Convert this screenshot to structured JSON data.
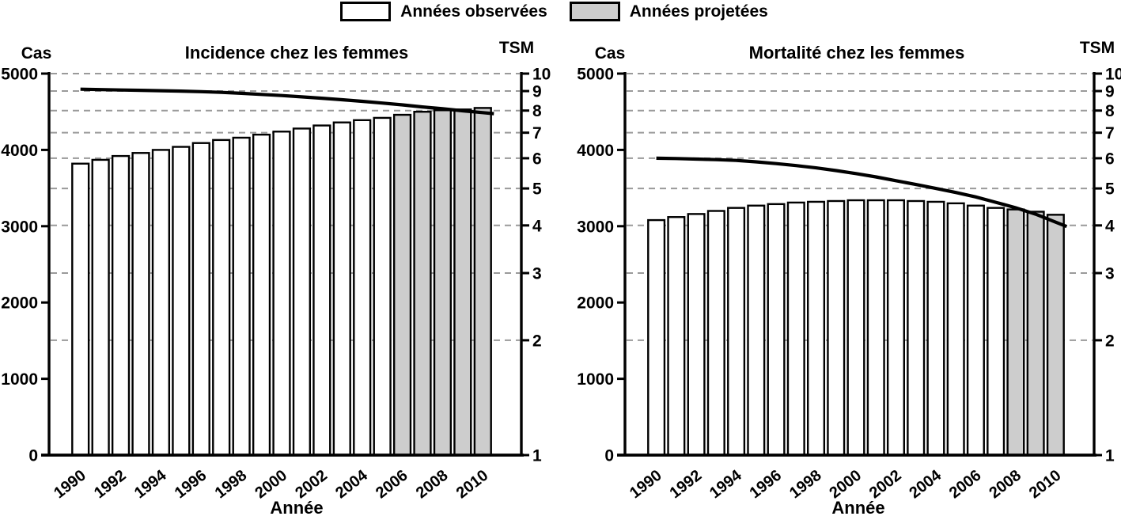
{
  "legend": {
    "observed": "Années observées",
    "projected": "Années projetées"
  },
  "colors": {
    "bar_observed": "#ffffff",
    "bar_projected": "#cdcdcd",
    "bar_stroke": "#000000",
    "line": "#000000",
    "gridline": "#9a9a9a",
    "text": "#000000",
    "background": "#ffffff"
  },
  "chart_data": [
    {
      "type": "bar-line",
      "title": "Incidence chez les femmes",
      "left_axis": {
        "label": "Cas",
        "min": 0,
        "max": 5000,
        "ticks": [
          0,
          1000,
          2000,
          3000,
          4000,
          5000
        ]
      },
      "right_axis": {
        "label": "TSM",
        "min": 1,
        "max": 10,
        "scale": "log",
        "ticks": [
          1,
          2,
          3,
          4,
          5,
          6,
          7,
          8,
          9,
          10
        ],
        "gridlines": [
          2,
          3,
          4,
          5,
          6,
          7,
          8,
          9,
          10
        ]
      },
      "x_axis": {
        "label": "Année",
        "tick_every": 2,
        "first_label": 1990
      },
      "categories": [
        1990,
        1991,
        1992,
        1993,
        1994,
        1995,
        1996,
        1997,
        1998,
        1999,
        2000,
        2001,
        2002,
        2003,
        2004,
        2005,
        2006,
        2007,
        2008,
        2009,
        2010
      ],
      "bars": {
        "name": "Cas (nombre de cas)",
        "projected_from": 2006,
        "values": [
          3820,
          3870,
          3920,
          3960,
          4000,
          4040,
          4090,
          4130,
          4160,
          4200,
          4240,
          4280,
          4320,
          4360,
          4390,
          4420,
          4460,
          4500,
          4520,
          4530,
          4550
        ]
      },
      "line": {
        "name": "TSM (taux standardisé)",
        "values": [
          9.1,
          9.08,
          9.06,
          9.04,
          9.02,
          9.0,
          8.97,
          8.93,
          8.88,
          8.82,
          8.76,
          8.69,
          8.62,
          8.54,
          8.46,
          8.37,
          8.28,
          8.18,
          8.09,
          7.99,
          7.9
        ]
      }
    },
    {
      "type": "bar-line",
      "title": "Mortalité chez les femmes",
      "left_axis": {
        "label": "Cas",
        "min": 0,
        "max": 5000,
        "ticks": [
          0,
          1000,
          2000,
          3000,
          4000,
          5000
        ]
      },
      "right_axis": {
        "label": "TSM",
        "min": 1,
        "max": 10,
        "scale": "log",
        "ticks": [
          1,
          2,
          3,
          4,
          5,
          6,
          7,
          8,
          9,
          10
        ],
        "gridlines": [
          2,
          3,
          4,
          5,
          6,
          7,
          8,
          9,
          10
        ]
      },
      "x_axis": {
        "label": "Année",
        "tick_every": 2,
        "first_label": 1990
      },
      "categories": [
        1990,
        1991,
        1992,
        1993,
        1994,
        1995,
        1996,
        1997,
        1998,
        1999,
        2000,
        2001,
        2002,
        2003,
        2004,
        2005,
        2006,
        2007,
        2008,
        2009,
        2010
      ],
      "bars": {
        "name": "Cas (nombre de cas)",
        "projected_from": 2008,
        "values": [
          3080,
          3120,
          3160,
          3200,
          3240,
          3270,
          3290,
          3310,
          3320,
          3330,
          3340,
          3340,
          3340,
          3330,
          3320,
          3300,
          3270,
          3240,
          3220,
          3190,
          3150
        ]
      },
      "line": {
        "name": "TSM (taux standardisé)",
        "values": [
          6.0,
          5.99,
          5.97,
          5.95,
          5.92,
          5.87,
          5.81,
          5.74,
          5.66,
          5.57,
          5.47,
          5.36,
          5.24,
          5.12,
          5.0,
          4.88,
          4.75,
          4.6,
          4.45,
          4.28,
          4.08
        ]
      }
    }
  ]
}
